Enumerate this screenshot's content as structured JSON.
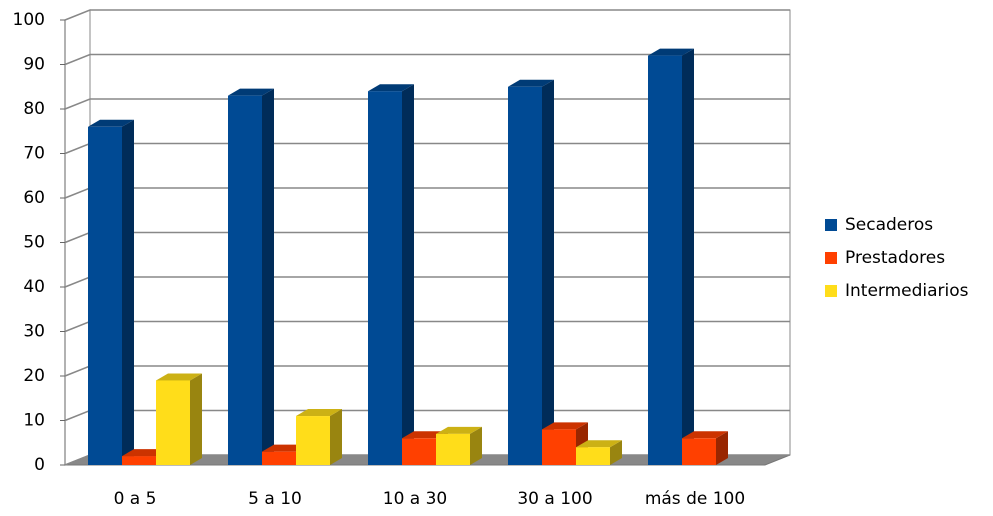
{
  "chart_data": {
    "type": "bar3d",
    "categories": [
      "0 a 5",
      "5 a 10",
      "10 a 30",
      "30 a 100",
      "más de 100"
    ],
    "series": [
      {
        "name": "Secaderos",
        "color": "#004a94",
        "values": [
          76,
          83,
          84,
          85,
          92
        ]
      },
      {
        "name": "Prestadores",
        "color": "#ff4000",
        "values": [
          2,
          3,
          6,
          8,
          6
        ]
      },
      {
        "name": "Intermediarios",
        "color": "#ffdd1a",
        "values": [
          19,
          11,
          7,
          4,
          null
        ]
      }
    ],
    "ylim": [
      0,
      100
    ],
    "yticks": [
      0,
      10,
      20,
      30,
      40,
      50,
      60,
      70,
      80,
      90,
      100
    ],
    "grid": true,
    "legend": "right"
  }
}
